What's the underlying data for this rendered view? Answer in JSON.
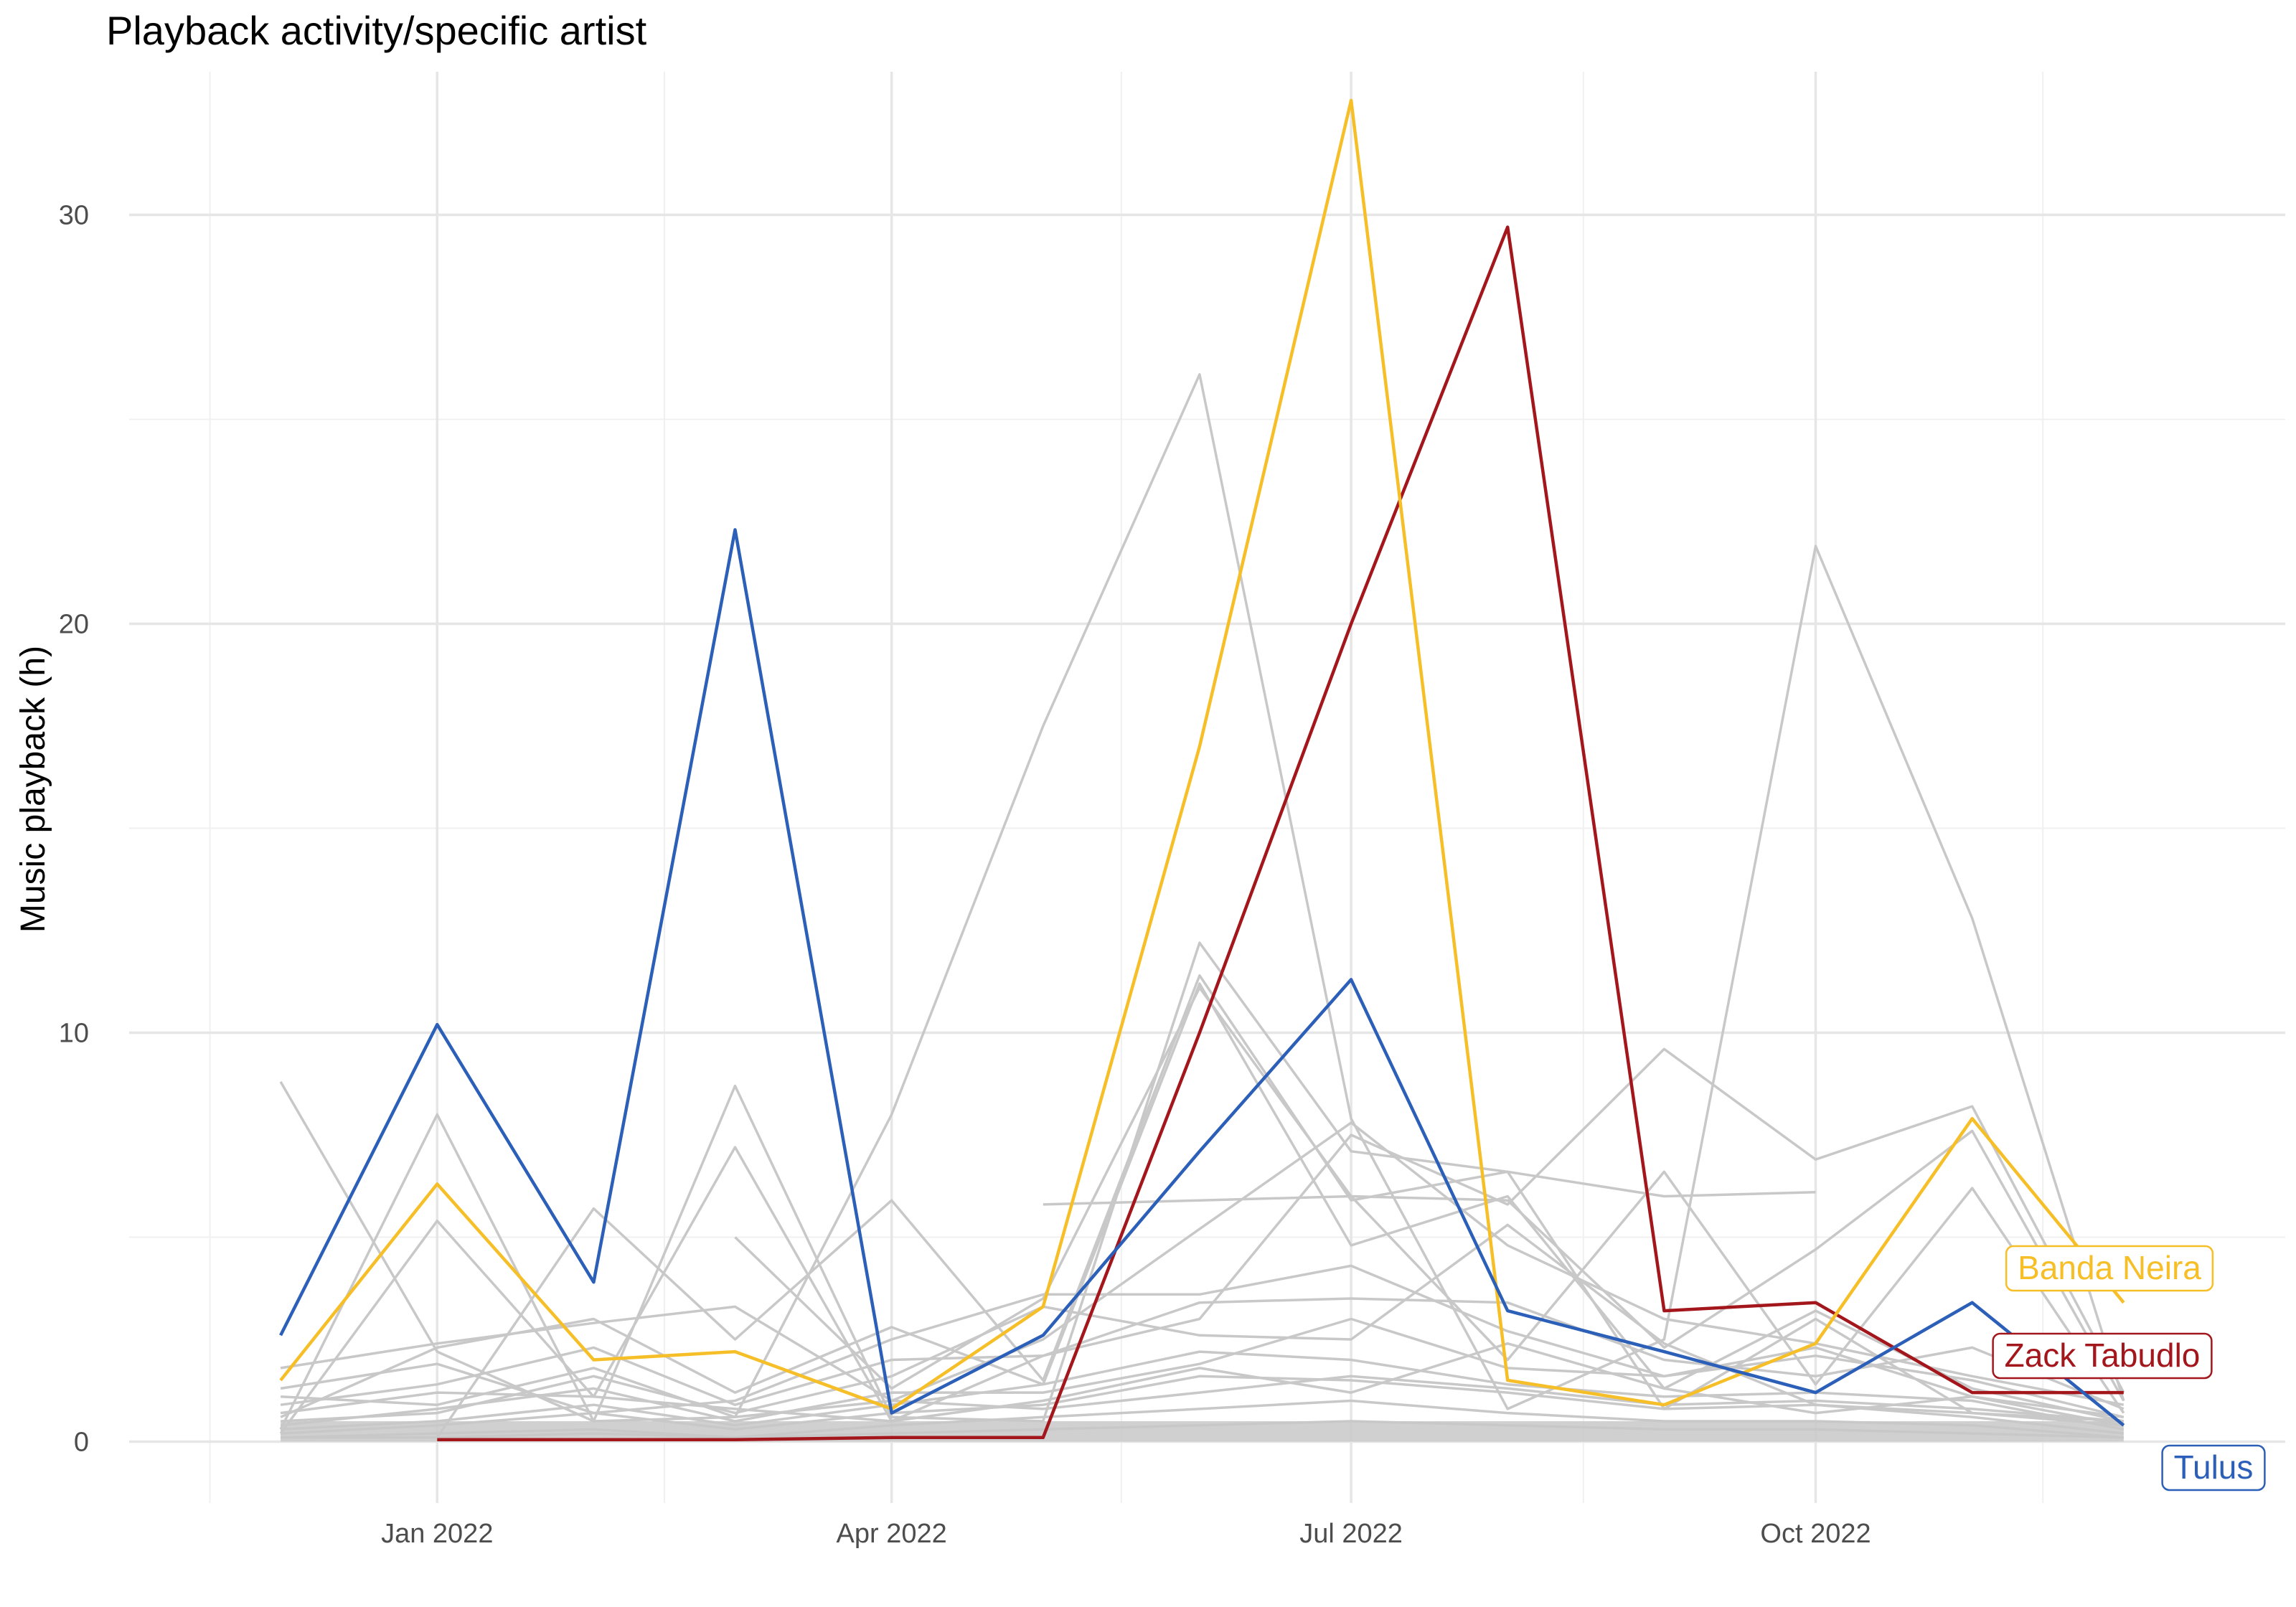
{
  "chart_data": {
    "type": "line",
    "title": "Playback activity/specific artist",
    "xlabel": "",
    "ylabel": "Music playback (h)",
    "x_ticks": [
      "Jan 2022",
      "Apr 2022",
      "Jul 2022",
      "Oct 2022"
    ],
    "x_tick_dates": [
      "2022-01-01",
      "2022-04-01",
      "2022-07-01",
      "2022-10-01"
    ],
    "y_ticks": [
      0,
      10,
      20,
      30
    ],
    "ylim": [
      -1.5,
      33.5
    ],
    "xlim": [
      "2021-11-01",
      "2023-01-02"
    ],
    "x": [
      "2021-12-01",
      "2022-01-01",
      "2022-02-01",
      "2022-03-01",
      "2022-04-01",
      "2022-05-01",
      "2022-06-01",
      "2022-07-01",
      "2022-08-01",
      "2022-09-01",
      "2022-10-01",
      "2022-11-01",
      "2022-12-01"
    ],
    "grid": true,
    "legend": "direct labels at right end",
    "highlight_colors": {
      "Banda Neira": "#F6BE27",
      "Zack Tabudlo": "#A3171C",
      "Tulus": "#2C5FB8"
    },
    "background_series_color": "#C8C8C8",
    "series": [
      {
        "name": "Tulus",
        "highlight": true,
        "values": [
          2.6,
          10.2,
          3.9,
          22.3,
          0.7,
          2.6,
          7.1,
          11.3,
          3.2,
          2.2,
          1.2,
          3.4,
          0.4
        ]
      },
      {
        "name": "Banda Neira",
        "highlight": true,
        "values": [
          1.5,
          6.3,
          2.0,
          2.2,
          0.8,
          3.3,
          17.0,
          32.8,
          1.5,
          0.9,
          2.4,
          7.9,
          3.4
        ]
      },
      {
        "name": "Zack Tabudlo",
        "highlight": true,
        "values": [
          null,
          0.05,
          0.05,
          0.05,
          0.1,
          0.1,
          10.0,
          20.0,
          29.7,
          3.2,
          3.4,
          1.2,
          1.2
        ]
      },
      {
        "highlight": false,
        "values": [
          8.8,
          2.2,
          0.5,
          0.6,
          8.0,
          17.5,
          26.1,
          7.9,
          0.8,
          2.5,
          21.9,
          12.8,
          1.0
        ]
      },
      {
        "highlight": false,
        "values": [
          0.3,
          8.0,
          0.5,
          8.7,
          0.6,
          0.5,
          12.2,
          7.1,
          6.6,
          0.8,
          3.0,
          0.7,
          0.5
        ]
      },
      {
        "highlight": false,
        "values": [
          0.2,
          5.4,
          1.1,
          7.2,
          0.5,
          2.1,
          3.0,
          7.5,
          5.8,
          9.6,
          6.9,
          8.2,
          1.2
        ]
      },
      {
        "highlight": false,
        "values": [
          null,
          0.1,
          5.7,
          2.5,
          5.9,
          1.5,
          11.4,
          5.9,
          6.6,
          6.0,
          6.1,
          null,
          null
        ]
      },
      {
        "highlight": false,
        "values": [
          null,
          null,
          null,
          null,
          null,
          5.8,
          5.9,
          6.0,
          5.9,
          2.3,
          4.7,
          7.6,
          1.0
        ]
      },
      {
        "highlight": false,
        "values": [
          null,
          null,
          null,
          5.0,
          1.3,
          3.5,
          11.1,
          6.0,
          2.0,
          6.6,
          1.4,
          6.2,
          0.7
        ]
      },
      {
        "highlight": false,
        "values": [
          1.8,
          2.4,
          2.9,
          3.3,
          1.0,
          2.5,
          5.2,
          7.8,
          4.8,
          3.0,
          2.4,
          1.6,
          0.9
        ]
      },
      {
        "highlight": false,
        "values": [
          0.6,
          2.3,
          3.0,
          1.2,
          2.8,
          1.4,
          11.2,
          4.8,
          6.0,
          1.3,
          3.2,
          1.3,
          0.5
        ]
      },
      {
        "highlight": false,
        "values": [
          1.3,
          1.9,
          0.7,
          1.0,
          2.5,
          3.6,
          3.6,
          4.3,
          2.7,
          1.6,
          2.3,
          1.1,
          0.6
        ]
      },
      {
        "highlight": false,
        "values": [
          0.9,
          1.4,
          2.3,
          0.9,
          2.0,
          2.1,
          3.4,
          3.5,
          3.4,
          2.0,
          1.6,
          2.3,
          0.8
        ]
      },
      {
        "highlight": false,
        "values": [
          0.5,
          0.7,
          1.6,
          0.7,
          1.6,
          3.3,
          2.6,
          2.5,
          5.3,
          2.4,
          0.9,
          0.7,
          0.4
        ]
      },
      {
        "highlight": false,
        "values": [
          0.4,
          0.8,
          1.3,
          0.5,
          1.2,
          1.2,
          1.9,
          3.0,
          1.8,
          1.6,
          2.1,
          1.5,
          0.6
        ]
      },
      {
        "highlight": false,
        "values": [
          0.3,
          0.5,
          0.9,
          0.4,
          0.9,
          1.4,
          2.2,
          2.0,
          1.4,
          1.1,
          1.2,
          1.0,
          0.3
        ]
      },
      {
        "highlight": false,
        "values": [
          0.2,
          0.4,
          0.7,
          0.3,
          0.7,
          0.9,
          1.6,
          1.5,
          1.2,
          0.8,
          0.9,
          0.6,
          0.2
        ]
      },
      {
        "highlight": false,
        "values": [
          0.1,
          0.2,
          0.3,
          0.1,
          0.4,
          0.6,
          0.8,
          1.0,
          0.7,
          0.5,
          0.5,
          0.4,
          0.1
        ]
      },
      {
        "highlight": false,
        "values": [
          0.1,
          0.1,
          0.2,
          0.1,
          0.2,
          0.3,
          0.4,
          0.5,
          0.4,
          0.3,
          0.3,
          0.2,
          0.1
        ]
      },
      {
        "highlight": false,
        "values": [
          1.1,
          0.9,
          1.8,
          0.6,
          1.0,
          0.8,
          1.2,
          1.6,
          1.3,
          0.9,
          1.0,
          0.8,
          0.5
        ]
      },
      {
        "highlight": false,
        "values": [
          0.7,
          1.2,
          1.1,
          0.8,
          0.5,
          1.0,
          1.8,
          1.2,
          2.4,
          1.3,
          0.7,
          1.1,
          0.4
        ]
      }
    ]
  }
}
